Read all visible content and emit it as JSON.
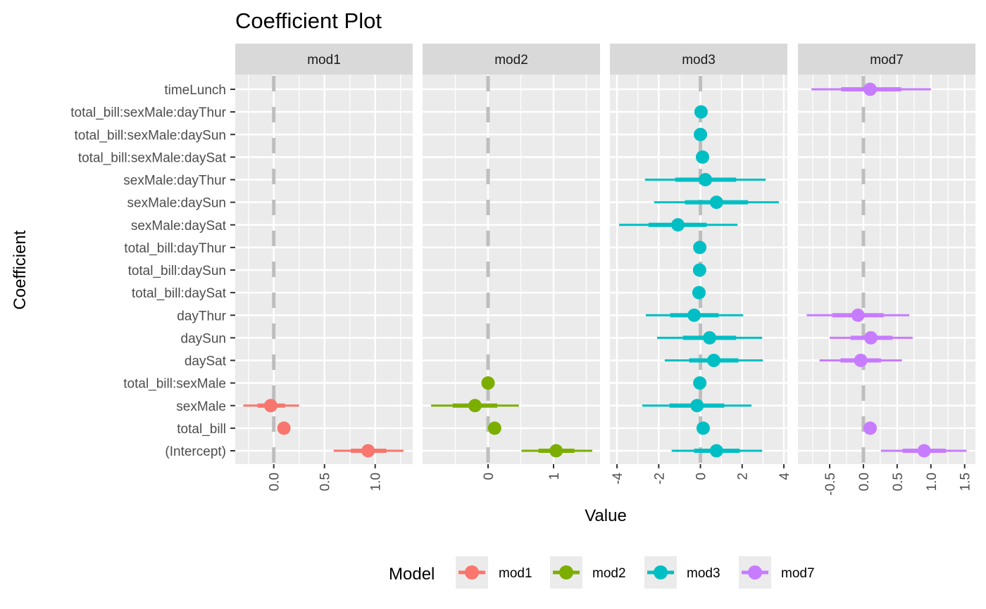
{
  "chart_data": {
    "type": "scatter",
    "subtype": "coefficient-plot (point + inner/outer intervals), faceted",
    "title": "Coefficient Plot",
    "xlabel": "Value",
    "ylabel": "Coefficient",
    "grid": true,
    "reference_line": {
      "x": 0,
      "style": "dashed",
      "color": "#bebebe"
    },
    "categories": [
      "timeLunch",
      "total_bill:sexMale:dayThur",
      "total_bill:sexMale:daySun",
      "total_bill:sexMale:daySat",
      "sexMale:dayThur",
      "sexMale:daySun",
      "sexMale:daySat",
      "total_bill:dayThur",
      "total_bill:daySun",
      "total_bill:daySat",
      "dayThur",
      "daySun",
      "daySat",
      "total_bill:sexMale",
      "sexMale",
      "total_bill",
      "(Intercept)"
    ],
    "legend": {
      "title": "Model",
      "position": "bottom",
      "entries": [
        {
          "label": "mod1",
          "color": "#F8766D"
        },
        {
          "label": "mod2",
          "color": "#7CAE00"
        },
        {
          "label": "mod3",
          "color": "#00BFC4"
        },
        {
          "label": "mod7",
          "color": "#C77CFF"
        }
      ]
    },
    "facets": [
      {
        "name": "mod1",
        "color": "#F8766D",
        "xlim": [
          -0.38,
          1.37
        ],
        "xticks": [
          0.0,
          0.5,
          1.0
        ],
        "xtick_labels": [
          "0.0",
          "0.5",
          "1.0"
        ],
        "minor_xticks": [
          -0.25,
          0.25,
          0.75,
          1.25
        ],
        "points": [
          {
            "coef": "sexMale",
            "value": -0.03,
            "inner": [
              -0.16,
              0.11
            ],
            "outer": [
              -0.3,
              0.25
            ]
          },
          {
            "coef": "total_bill",
            "value": 0.1,
            "inner": [
              0.1,
              0.1
            ],
            "outer": [
              0.1,
              0.1
            ]
          },
          {
            "coef": "(Intercept)",
            "value": 0.93,
            "inner": [
              0.76,
              1.11
            ],
            "outer": [
              0.59,
              1.28
            ]
          }
        ]
      },
      {
        "name": "mod2",
        "color": "#7CAE00",
        "xlim": [
          -1.0,
          1.71
        ],
        "xticks": [
          0,
          1
        ],
        "xtick_labels": [
          "0",
          "1"
        ],
        "minor_xticks": [
          -0.5,
          0.5,
          1.5
        ],
        "points": [
          {
            "coef": "total_bill:sexMale",
            "value": 0.0,
            "inner": [
              0.0,
              0.0
            ],
            "outer": [
              0.0,
              0.0
            ]
          },
          {
            "coef": "sexMale",
            "value": -0.2,
            "inner": [
              -0.54,
              0.14
            ],
            "outer": [
              -0.87,
              0.47
            ]
          },
          {
            "coef": "total_bill",
            "value": 0.1,
            "inner": [
              0.1,
              0.1
            ],
            "outer": [
              0.1,
              0.1
            ]
          },
          {
            "coef": "(Intercept)",
            "value": 1.04,
            "inner": [
              0.77,
              1.32
            ],
            "outer": [
              0.51,
              1.59
            ]
          }
        ]
      },
      {
        "name": "mod3",
        "color": "#00BFC4",
        "xlim": [
          -4.34,
          4.17
        ],
        "xticks": [
          -4,
          -2,
          0,
          2,
          4
        ],
        "xtick_labels": [
          "-4",
          "-2",
          "0",
          "2",
          "4"
        ],
        "minor_xticks": [
          -3,
          -1,
          1,
          3
        ],
        "points": [
          {
            "coef": "total_bill:sexMale:dayThur",
            "value": 0.03,
            "inner": [
              0.03,
              0.03
            ],
            "outer": [
              0.03,
              0.03
            ]
          },
          {
            "coef": "total_bill:sexMale:daySun",
            "value": 0.0,
            "inner": [
              0.0,
              0.0
            ],
            "outer": [
              0.0,
              0.0
            ]
          },
          {
            "coef": "total_bill:sexMale:daySat",
            "value": 0.1,
            "inner": [
              0.1,
              0.1
            ],
            "outer": [
              0.1,
              0.1
            ]
          },
          {
            "coef": "sexMale:dayThur",
            "value": 0.24,
            "inner": [
              -1.21,
              1.71
            ],
            "outer": [
              -2.66,
              3.13
            ]
          },
          {
            "coef": "sexMale:daySun",
            "value": 0.77,
            "inner": [
              -0.74,
              2.28
            ],
            "outer": [
              -2.22,
              3.76
            ]
          },
          {
            "coef": "sexMale:daySat",
            "value": -1.08,
            "inner": [
              -2.49,
              0.3
            ],
            "outer": [
              -3.9,
              1.78
            ]
          },
          {
            "coef": "total_bill:dayThur",
            "value": -0.03,
            "inner": [
              -0.03,
              -0.03
            ],
            "outer": [
              -0.03,
              -0.03
            ]
          },
          {
            "coef": "total_bill:daySun",
            "value": -0.04,
            "inner": [
              -0.04,
              -0.04
            ],
            "outer": [
              -0.04,
              -0.04
            ]
          },
          {
            "coef": "total_bill:daySat",
            "value": -0.07,
            "inner": [
              -0.07,
              -0.07
            ],
            "outer": [
              -0.07,
              -0.07
            ]
          },
          {
            "coef": "dayThur",
            "value": -0.3,
            "inner": [
              -1.45,
              0.87
            ],
            "outer": [
              -2.62,
              2.05
            ]
          },
          {
            "coef": "daySun",
            "value": 0.44,
            "inner": [
              -0.84,
              1.71
            ],
            "outer": [
              -2.08,
              2.96
            ]
          },
          {
            "coef": "daySat",
            "value": 0.64,
            "inner": [
              -0.54,
              1.82
            ],
            "outer": [
              -1.71,
              2.99
            ]
          },
          {
            "coef": "total_bill:sexMale",
            "value": -0.03,
            "inner": [
              -0.03,
              -0.03
            ],
            "outer": [
              -0.03,
              -0.03
            ]
          },
          {
            "coef": "sexMale",
            "value": -0.16,
            "inner": [
              -1.48,
              1.14
            ],
            "outer": [
              -2.79,
              2.45
            ]
          },
          {
            "coef": "total_bill",
            "value": 0.13,
            "inner": [
              0.13,
              0.13
            ],
            "outer": [
              0.13,
              0.13
            ]
          },
          {
            "coef": "(Intercept)",
            "value": 0.77,
            "inner": [
              -0.3,
              1.88
            ],
            "outer": [
              -1.38,
              2.96
            ]
          }
        ]
      },
      {
        "name": "mod7",
        "color": "#C77CFF",
        "xlim": [
          -0.97,
          1.66
        ],
        "xticks": [
          -0.5,
          0.0,
          0.5,
          1.0,
          1.5
        ],
        "xtick_labels": [
          "-0.5",
          "0.0",
          "0.5",
          "1.0",
          "1.5"
        ],
        "minor_xticks": [
          -0.75,
          -0.25,
          0.25,
          0.75,
          1.25
        ],
        "points": [
          {
            "coef": "timeLunch",
            "value": 0.1,
            "inner": [
              -0.33,
              0.56
            ],
            "outer": [
              -0.77,
              1.0
            ]
          },
          {
            "coef": "dayThur",
            "value": -0.08,
            "inner": [
              -0.46,
              0.3
            ],
            "outer": [
              -0.84,
              0.68
            ]
          },
          {
            "coef": "daySun",
            "value": 0.11,
            "inner": [
              -0.19,
              0.43
            ],
            "outer": [
              -0.5,
              0.73
            ]
          },
          {
            "coef": "daySat",
            "value": -0.04,
            "inner": [
              -0.34,
              0.26
            ],
            "outer": [
              -0.65,
              0.57
            ]
          },
          {
            "coef": "total_bill",
            "value": 0.1,
            "inner": [
              0.1,
              0.1
            ],
            "outer": [
              0.1,
              0.1
            ]
          },
          {
            "coef": "(Intercept)",
            "value": 0.9,
            "inner": [
              0.58,
              1.22
            ],
            "outer": [
              0.26,
              1.53
            ]
          }
        ]
      }
    ]
  }
}
